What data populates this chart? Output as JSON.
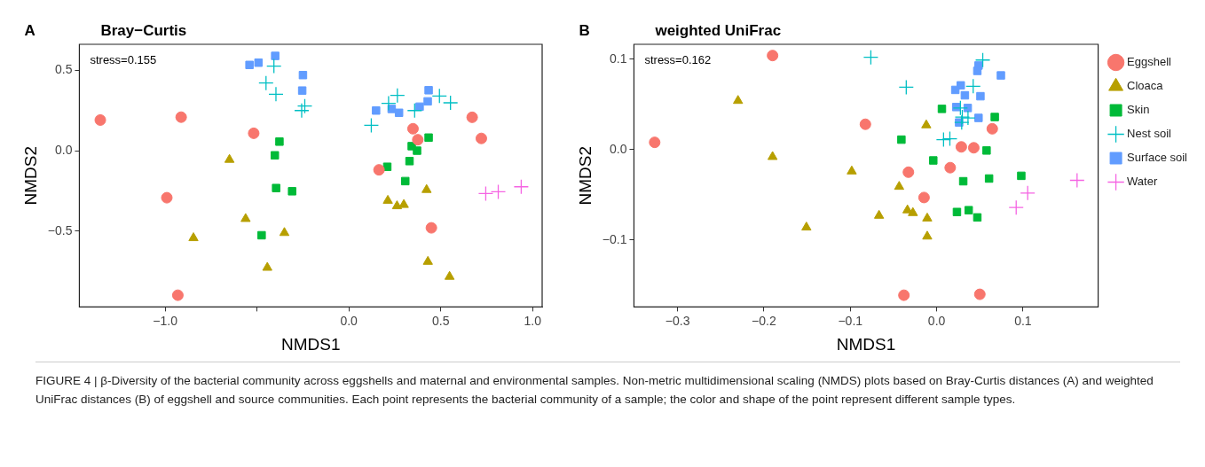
{
  "chart_data": [
    {
      "type": "scatter",
      "title": "Bray−Curtis",
      "xlabel": "NMDS1",
      "ylabel": "NMDS2",
      "annotations": [
        "A",
        "stress=0.155"
      ],
      "xlim": [
        -1.467,
        1.052
      ],
      "ylim": [
        -0.97,
        0.66
      ],
      "xticks": [
        {
          "value": -1,
          "label": "−1.0"
        },
        {
          "value": -0.5,
          "label": null
        },
        {
          "value": 0,
          "label": "0.0"
        },
        {
          "value": 0.5,
          "label": "0.5"
        },
        {
          "value": 1,
          "label": "1.0"
        }
      ],
      "yticks": [
        {
          "value": -0.5,
          "label": "−0.5"
        },
        {
          "value": 0,
          "label": "0.0"
        },
        0.5
      ],
      "grid": false,
      "legend": false,
      "series": [
        {
          "color": "#f8766d",
          "marker": "circle",
          "x": [
            -1.353,
            -0.913,
            -0.518,
            -0.991,
            -0.931,
            0.349,
            0.375,
            0.671,
            0.721,
            0.164,
            0.449
          ],
          "values": [
            0.19,
            0.208,
            0.108,
            -0.292,
            -0.897,
            0.136,
            0.068,
            0.207,
            0.076,
            -0.119,
            -0.479
          ]
        },
        {
          "color": "#b79f00",
          "marker": "triangle",
          "x": [
            -0.65,
            -0.562,
            -0.846,
            -0.351,
            -0.444,
            0.423,
            0.212,
            0.262,
            0.299,
            0.43,
            0.548
          ],
          "values": [
            -0.056,
            -0.423,
            -0.542,
            -0.51,
            -0.726,
            -0.243,
            -0.31,
            -0.344,
            -0.336,
            -0.689,
            -0.782
          ]
        },
        {
          "color": "#00ba38",
          "marker": "square",
          "x": [
            -0.378,
            -0.403,
            -0.396,
            -0.309,
            -0.475,
            0.434,
            0.342,
            0.371,
            0.33,
            0.209,
            0.307
          ],
          "values": [
            0.056,
            -0.029,
            -0.232,
            -0.252,
            -0.525,
            0.081,
            0.028,
            0.0,
            -0.065,
            -0.1,
            -0.189
          ]
        },
        {
          "color": "#00bfc4",
          "marker": "cross",
          "x": [
            -0.408,
            -0.451,
            -0.397,
            -0.24,
            -0.257,
            0.264,
            0.216,
            0.358,
            0.493,
            0.553,
            0.122
          ],
          "values": [
            0.525,
            0.42,
            0.35,
            0.277,
            0.249,
            0.343,
            0.294,
            0.249,
            0.339,
            0.297,
            0.157
          ]
        },
        {
          "color": "#619cff",
          "marker": "square",
          "x": [
            -0.541,
            -0.492,
            -0.401,
            -0.25,
            -0.254,
            0.148,
            0.233,
            0.273,
            0.385,
            0.429,
            0.434
          ],
          "values": [
            0.532,
            0.546,
            0.588,
            0.469,
            0.373,
            0.249,
            0.259,
            0.235,
            0.273,
            0.306,
            0.375
          ]
        },
        {
          "color": "#f564e3",
          "marker": "cross",
          "x": [
            0.745,
            0.813,
            0.938
          ],
          "values": [
            -0.266,
            -0.255,
            -0.224
          ]
        }
      ]
    },
    {
      "type": "scatter",
      "title": "weighted UniFrac",
      "xlabel": "NMDS1",
      "ylabel": "NMDS2",
      "annotations": [
        "B",
        "stress=0.162"
      ],
      "xlim": [
        -0.3505,
        0.187
      ],
      "ylim": [
        -0.174,
        0.1164
      ],
      "xticks": [
        {
          "value": -0.3,
          "label": "−0.3"
        },
        {
          "value": -0.2,
          "label": "−0.2"
        },
        {
          "value": -0.1,
          "label": "−0.1"
        },
        {
          "value": 0,
          "label": "0.0"
        },
        0.1
      ],
      "yticks": [
        {
          "value": -0.1,
          "label": "−0.1"
        },
        {
          "value": 0,
          "label": "0.0"
        },
        0.1
      ],
      "grid": false,
      "legend": "right",
      "series": [
        {
          "name": "Eggshell",
          "color": "#f8766d",
          "marker": "circle",
          "x": [
            -0.19,
            -0.3265,
            -0.0825,
            0.0644,
            0.0286,
            0.043,
            0.0157,
            -0.0327,
            -0.0146,
            -0.0379,
            0.05
          ],
          "values": [
            0.104,
            0.008,
            0.028,
            0.023,
            0.003,
            0.002,
            -0.02,
            -0.025,
            -0.053,
            -0.161,
            -0.16
          ]
        },
        {
          "name": "Cloaca",
          "color": "#b79f00",
          "marker": "triangle",
          "x": [
            -0.23,
            -0.19,
            -0.0983,
            -0.1508,
            -0.012,
            -0.0434,
            -0.0667,
            -0.0338,
            -0.0275,
            -0.0109,
            -0.0109
          ],
          "values": [
            0.054,
            -0.008,
            -0.024,
            -0.086,
            0.027,
            -0.041,
            -0.073,
            -0.067,
            -0.07,
            -0.076,
            -0.096
          ]
        },
        {
          "name": "Skin",
          "color": "#00ba38",
          "marker": "square",
          "x": [
            0.0061,
            0.0673,
            -0.0408,
            0.0578,
            -0.0039,
            0.098,
            0.0607,
            0.0308,
            0.0235,
            0.0371,
            0.0471
          ],
          "values": [
            0.045,
            0.036,
            0.011,
            -0.001,
            -0.012,
            -0.029,
            -0.032,
            -0.035,
            -0.069,
            -0.067,
            -0.075
          ]
        },
        {
          "name": "Nest soil",
          "color": "#00bfc4",
          "marker": "cross",
          "x": [
            -0.0762,
            -0.0352,
            0.0534,
            0.0423,
            0.0275,
            0.0297,
            0.0363,
            0.029,
            0.008,
            0.0153
          ],
          "values": [
            0.102,
            0.069,
            0.099,
            0.07,
            0.046,
            0.036,
            0.035,
            0.03,
            0.011,
            0.012
          ]
        },
        {
          "name": "Surface soil",
          "color": "#619cff",
          "marker": "square",
          "x": [
            0.0485,
            0.0471,
            0.0744,
            0.0279,
            0.0216,
            0.0327,
            0.0507,
            0.0227,
            0.036,
            0.0485,
            0.026
          ],
          "values": [
            0.093,
            0.087,
            0.082,
            0.071,
            0.066,
            0.06,
            0.059,
            0.047,
            0.046,
            0.035,
            0.03
          ]
        },
        {
          "name": "Water",
          "color": "#f564e3",
          "marker": "cross",
          "x": [
            0.1626,
            0.1054,
            0.0921
          ],
          "values": [
            -0.034,
            -0.048,
            -0.064
          ]
        }
      ]
    },
    {
      "type": "other",
      "annotations": [
        "FIGURE 4 | β-Diversity of the bacterial community across eggshells and maternal and environmental samples. Non-metric multidimensional scaling (NMDS) plots based on Bray-Curtis distances (A) and weighted UniFrac distances (B) of eggshell and source communities. Each point represents the bacterial community of a sample; the color and shape of the point represent different sample types."
      ]
    }
  ]
}
